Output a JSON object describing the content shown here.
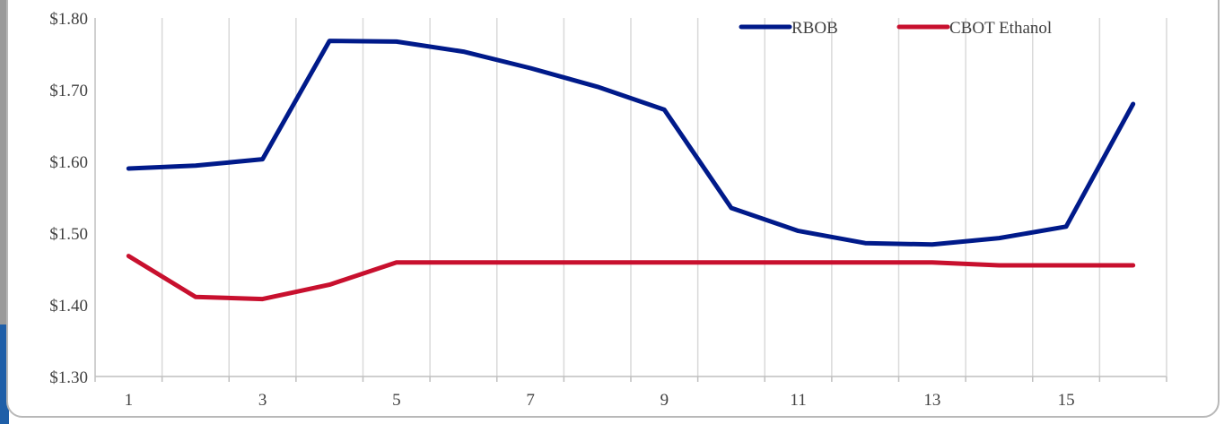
{
  "chart_data": {
    "type": "line",
    "x": [
      1,
      2,
      3,
      4,
      5,
      6,
      7,
      8,
      9,
      10,
      11,
      12,
      13,
      14,
      15,
      16
    ],
    "x_tick_labels": [
      "1",
      "3",
      "5",
      "7",
      "9",
      "11",
      "13",
      "15"
    ],
    "x_tick_values": [
      1,
      3,
      5,
      7,
      9,
      11,
      13,
      15
    ],
    "y_tick_labels": [
      "$1.80",
      "$1.70",
      "$1.60",
      "$1.50",
      "$1.40",
      "$1.30"
    ],
    "y_tick_values": [
      1.8,
      1.7,
      1.6,
      1.5,
      1.4,
      1.3
    ],
    "ylim": [
      1.3,
      1.8
    ],
    "xlim": [
      0.5,
      16.5
    ],
    "grid": "vertical",
    "legend_position": "top-right",
    "series": [
      {
        "name": "RBOB",
        "color": "#001a8a",
        "values": [
          1.59,
          1.594,
          1.603,
          1.768,
          1.767,
          1.753,
          1.73,
          1.704,
          1.672,
          1.535,
          1.503,
          1.486,
          1.484,
          1.493,
          1.509,
          1.68
        ]
      },
      {
        "name": "CBOT Ethanol",
        "color": "#c8102e",
        "values": [
          1.468,
          1.411,
          1.408,
          1.428,
          1.459,
          1.459,
          1.459,
          1.459,
          1.459,
          1.459,
          1.459,
          1.459,
          1.459,
          1.455,
          1.455,
          1.455
        ]
      }
    ]
  }
}
